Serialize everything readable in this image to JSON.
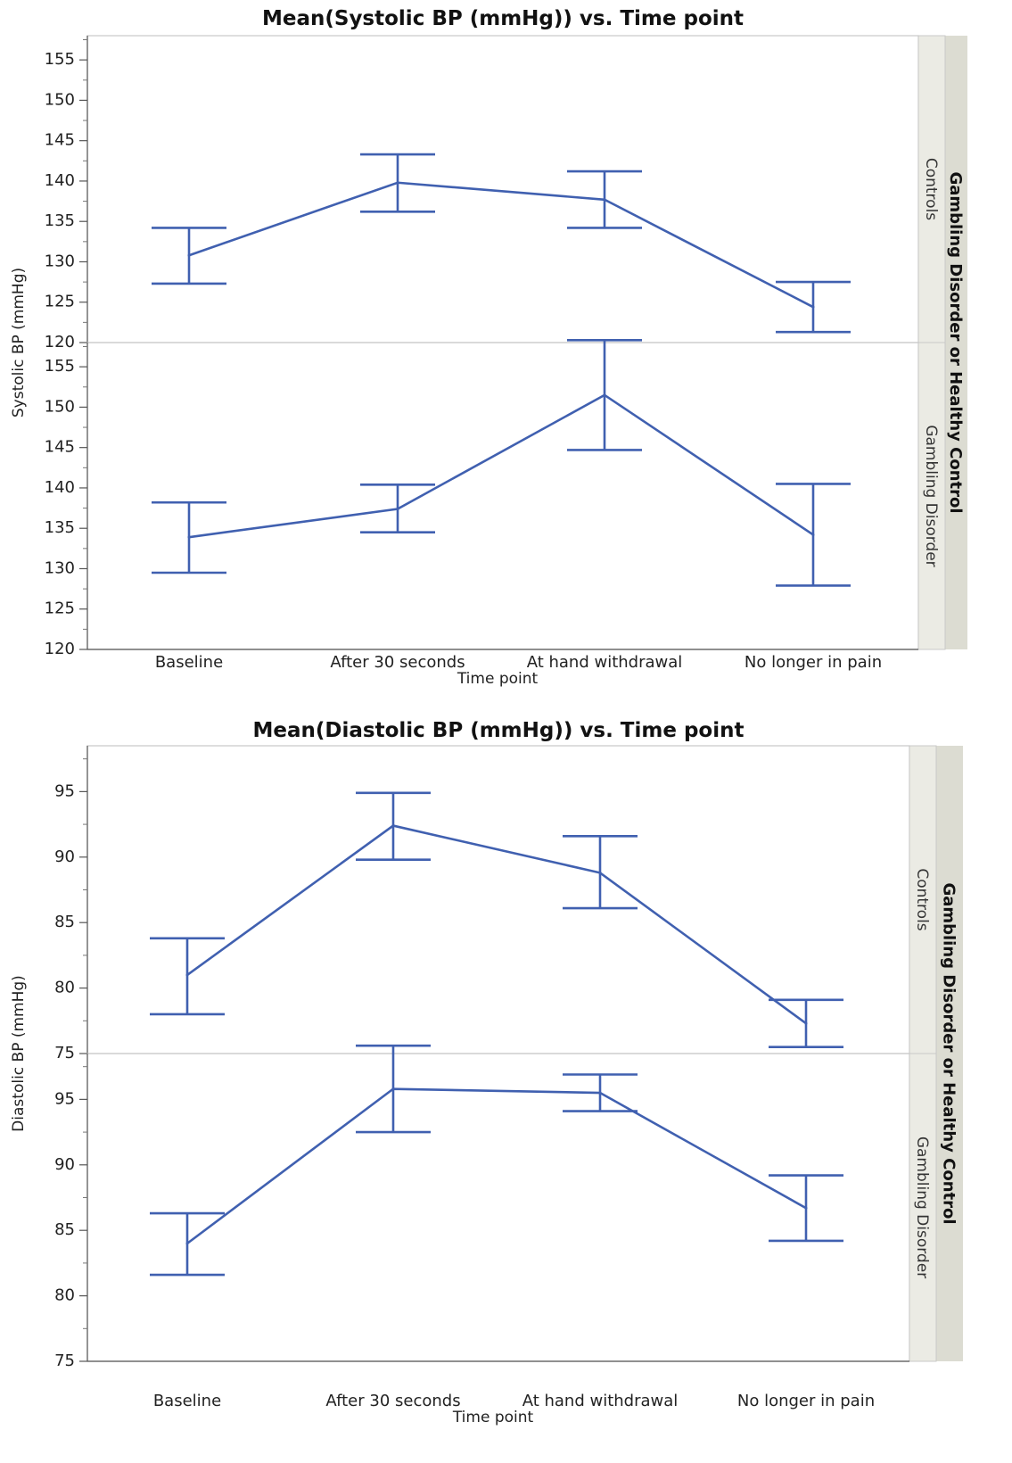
{
  "group_label": "Gambling Disorder or Healthy Control",
  "chart_data": [
    {
      "type": "line",
      "title": "Mean(Systolic BP (mmHg)) vs. Time point",
      "xlabel": "Time point",
      "ylabel": "Systolic BP (mmHg)",
      "categories": [
        "Baseline",
        "After 30 seconds",
        "At hand withdrawal",
        "No longer in pain"
      ],
      "ylim": [
        120,
        158
      ],
      "yticks": [
        120,
        125,
        130,
        135,
        140,
        145,
        150,
        155
      ],
      "error_bars": true,
      "line_color": "#4060b0",
      "panels": [
        {
          "label": "Controls",
          "values": [
            130.8,
            139.8,
            137.7,
            124.4
          ],
          "lower": [
            127.3,
            136.2,
            134.2,
            121.3
          ],
          "upper": [
            134.2,
            143.3,
            141.2,
            127.5
          ]
        },
        {
          "label": "Gambling Disorder",
          "values": [
            133.9,
            137.4,
            151.5,
            134.2
          ],
          "lower": [
            129.5,
            134.5,
            144.7,
            127.9
          ],
          "upper": [
            138.2,
            140.4,
            158.3,
            140.5
          ]
        }
      ]
    },
    {
      "type": "line",
      "title": "Mean(Diastolic BP (mmHg)) vs. Time point",
      "xlabel": "Time point",
      "ylabel": "Diastolic BP (mmHg)",
      "categories": [
        "Baseline",
        "After 30 seconds",
        "At hand withdrawal",
        "No longer in pain"
      ],
      "ylim": [
        75,
        98.5
      ],
      "yticks": [
        75,
        80,
        85,
        90,
        95
      ],
      "error_bars": true,
      "line_color": "#4060b0",
      "panels": [
        {
          "label": "Controls",
          "values": [
            81.0,
            92.4,
            88.8,
            77.3
          ],
          "lower": [
            78.0,
            89.8,
            86.1,
            75.5
          ],
          "upper": [
            83.8,
            94.9,
            91.6,
            79.1
          ]
        },
        {
          "label": "Gambling Disorder",
          "values": [
            84.0,
            95.8,
            95.5,
            86.7
          ],
          "lower": [
            81.6,
            92.5,
            94.1,
            84.2
          ],
          "upper": [
            86.3,
            99.1,
            96.9,
            89.2
          ]
        }
      ]
    }
  ]
}
